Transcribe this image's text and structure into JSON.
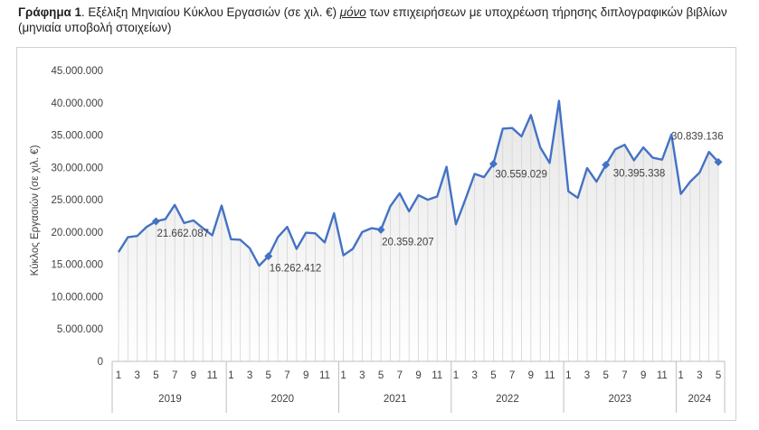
{
  "caption": {
    "lead": "Γράφημα 1",
    "part1": ". Εξέλιξη Μηνιαίου Κύκλου Εργασιών (σε χιλ. €) ",
    "emph": "μόνο",
    "part2": " των επιχειρήσεων με υποχρέωση τήρησης διπλογραφικών βιβλίων (μηνιαία υποβολή στοιχείων)"
  },
  "chart_data": {
    "type": "line",
    "ylabel": "Κύκλος Εργασιών (σε χιλ. €)",
    "ylim": [
      0,
      45000000
    ],
    "yticks": [
      "0",
      "5.000.000",
      "10.000.000",
      "15.000.000",
      "20.000.000",
      "25.000.000",
      "30.000.000",
      "35.000.000",
      "40.000.000",
      "45.000.000"
    ],
    "grid": false,
    "legend": "none",
    "color": "#4472c4",
    "years": [
      {
        "label": "2019",
        "months": 12
      },
      {
        "label": "2020",
        "months": 12
      },
      {
        "label": "2021",
        "months": 12
      },
      {
        "label": "2022",
        "months": 12
      },
      {
        "label": "2023",
        "months": 12
      },
      {
        "label": "2024",
        "months": 5
      }
    ],
    "month_tick_labels": [
      "1",
      "3",
      "5",
      "7",
      "9",
      "11"
    ],
    "values": [
      16900000,
      19200000,
      19400000,
      20800000,
      21662087,
      22000000,
      24200000,
      21400000,
      21800000,
      20600000,
      19500000,
      24100000,
      18900000,
      18800000,
      17500000,
      14800000,
      16262412,
      19200000,
      20800000,
      17400000,
      19900000,
      19800000,
      18400000,
      22900000,
      16400000,
      17400000,
      20000000,
      20600000,
      20359207,
      24000000,
      26000000,
      23200000,
      25700000,
      25000000,
      25500000,
      30100000,
      21200000,
      25000000,
      29000000,
      28500000,
      30559029,
      36000000,
      36100000,
      34800000,
      38100000,
      33100000,
      30700000,
      40300000,
      26300000,
      25300000,
      29900000,
      27800000,
      30395338,
      32800000,
      33500000,
      31100000,
      33100000,
      31500000,
      31200000,
      35100000,
      25900000,
      27800000,
      29200000,
      32400000,
      30839136
    ],
    "labeled_points": [
      {
        "index": 4,
        "label": "21.662.087"
      },
      {
        "index": 16,
        "label": "16.262.412"
      },
      {
        "index": 28,
        "label": "20.359.207"
      },
      {
        "index": 40,
        "label": "30.559.029"
      },
      {
        "index": 52,
        "label": "30.395.338"
      },
      {
        "index": 64,
        "label": "30.839.136"
      }
    ]
  }
}
